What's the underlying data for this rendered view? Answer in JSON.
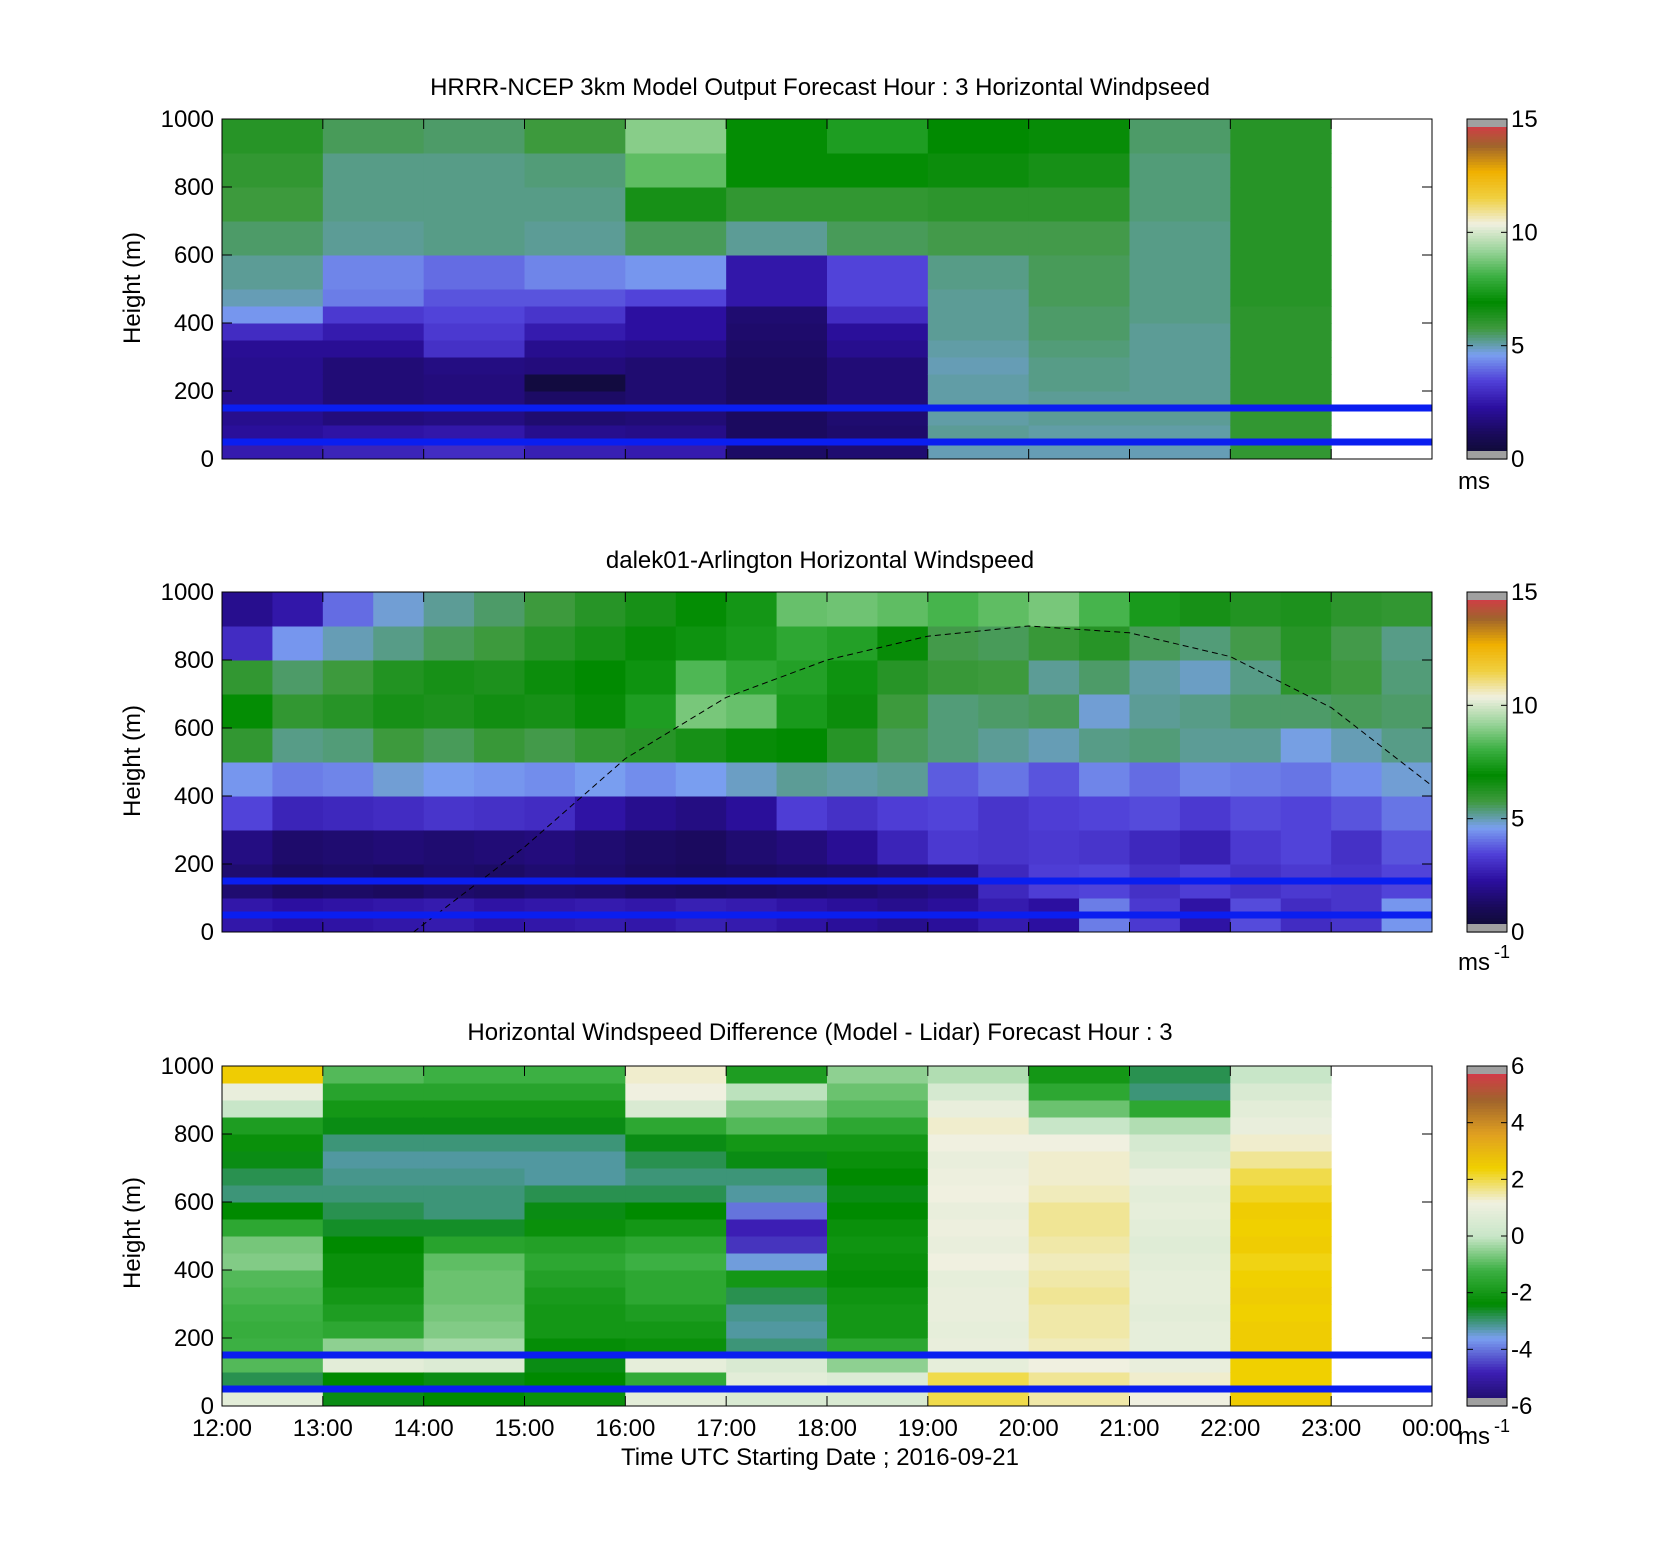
{
  "figure": {
    "time_axis_label": "Time UTC  Starting Date ; 2016-09-21",
    "time_ticks": [
      "12:00",
      "13:00",
      "14:00",
      "15:00",
      "16:00",
      "17:00",
      "18:00",
      "19:00",
      "20:00",
      "21:00",
      "22:00",
      "23:00",
      "00:00"
    ]
  },
  "colors": {
    "reference_lines": "#0a1ef0",
    "speed_scale": [
      "#0c0c2a",
      "#1a0a5c",
      "#2c0fa0",
      "#5040d8",
      "#7a9ff0",
      "#3f9a3f",
      "#008a00",
      "#3cb043",
      "#9bd49b",
      "#f0f0e0",
      "#f0d040",
      "#f0b000",
      "#a0642c",
      "#e03050"
    ],
    "diff_scale": [
      "#1a0a5c",
      "#3c1eb4",
      "#7a9ff0",
      "#008a00",
      "#3cb043",
      "#c8e6c8",
      "#f0f0e0",
      "#f0d000",
      "#e0a020",
      "#a0642c",
      "#e03050"
    ],
    "no_data": "#a0a0a0"
  },
  "chart_data": [
    {
      "type": "heatmap",
      "title": "HRRR-NCEP 3km Model Output   Forecast Hour : 3 Horizontal Windpseed",
      "ylabel": "Height (m)",
      "xlim": [
        "12:00",
        "00:00"
      ],
      "ylim": [
        0,
        1000
      ],
      "y_ticks": [
        "0",
        "200",
        "400",
        "600",
        "800",
        "1000"
      ],
      "colorbar": {
        "min": 0,
        "max": 15,
        "ticks": [
          "0",
          "5",
          "10",
          "15"
        ],
        "unit_label": "ms",
        "unit_sup": ""
      },
      "reference_lines_m": [
        50,
        150
      ],
      "time_bins": [
        "12:00",
        "13:00",
        "14:00",
        "15:00",
        "16:00",
        "17:00",
        "18:00",
        "19:00",
        "20:00",
        "21:00",
        "22:00"
      ],
      "height_bins_m": [
        0,
        50,
        100,
        150,
        200,
        250,
        300,
        350,
        400,
        450,
        500,
        600,
        700,
        800,
        900
      ],
      "values": [
        [
          2.6,
          2.2,
          2.0,
          2.0,
          2.0,
          2.0,
          2.1,
          3.0,
          4.5,
          5.0,
          5.2,
          5.5,
          5.8,
          6.0,
          6.2
        ],
        [
          2.8,
          2.4,
          1.7,
          1.6,
          1.6,
          1.6,
          2.1,
          2.6,
          3.3,
          4.2,
          4.3,
          5.2,
          5.3,
          5.3,
          5.6
        ],
        [
          3.0,
          2.5,
          1.8,
          1.7,
          1.7,
          1.8,
          3.1,
          3.3,
          3.5,
          3.7,
          4.0,
          5.3,
          5.3,
          5.3,
          5.5
        ],
        [
          2.7,
          2.0,
          1.5,
          1.3,
          0.5,
          1.7,
          2.0,
          2.6,
          3.2,
          3.7,
          4.3,
          5.2,
          5.3,
          5.4,
          5.8
        ],
        [
          2.6,
          1.9,
          1.6,
          1.5,
          1.5,
          1.5,
          1.9,
          2.3,
          2.3,
          3.5,
          4.5,
          5.6,
          6.5,
          8.5,
          9.0
        ],
        [
          1.3,
          1.2,
          1.2,
          1.2,
          1.2,
          1.2,
          1.3,
          1.4,
          1.5,
          2.5,
          2.5,
          5.2,
          6.0,
          7.0,
          7.0
        ],
        [
          1.5,
          1.4,
          1.5,
          1.6,
          1.6,
          1.6,
          2.0,
          2.2,
          3.0,
          3.5,
          3.5,
          5.6,
          6.0,
          7.0,
          7.5
        ],
        [
          5.0,
          5.2,
          5.1,
          5.1,
          5.1,
          5.0,
          5.1,
          5.2,
          5.2,
          5.2,
          5.3,
          5.7,
          6.1,
          6.7,
          6.9
        ],
        [
          5.0,
          5.1,
          5.2,
          5.2,
          5.3,
          5.3,
          5.4,
          5.5,
          5.5,
          5.6,
          5.6,
          5.7,
          6.1,
          6.5,
          6.8
        ],
        [
          5.0,
          5.1,
          5.2,
          5.2,
          5.2,
          5.2,
          5.2,
          5.2,
          5.3,
          5.3,
          5.3,
          5.3,
          5.4,
          5.4,
          5.5
        ],
        [
          6.0,
          6.0,
          6.0,
          6.1,
          6.1,
          6.1,
          6.1,
          6.1,
          6.1,
          6.2,
          6.2,
          6.2,
          6.2,
          6.2,
          6.2
        ]
      ]
    },
    {
      "type": "heatmap",
      "title": "dalek01-Arlington  Horizontal Windspeed",
      "ylabel": "Height (m)",
      "xlim": [
        "12:00",
        "00:00"
      ],
      "ylim": [
        0,
        1000
      ],
      "y_ticks": [
        "0",
        "200",
        "400",
        "600",
        "800",
        "1000"
      ],
      "colorbar": {
        "min": 0,
        "max": 15,
        "ticks": [
          "0",
          "5",
          "10",
          "15"
        ],
        "unit_label": "ms",
        "unit_sup": "-1"
      },
      "reference_lines_m": [
        50,
        150
      ],
      "overlay_curve": {
        "style": "dashed",
        "x_hours_utc": [
          13.9,
          15.0,
          16.0,
          17.0,
          18.0,
          19.0,
          20.0,
          21.0,
          22.0,
          23.0,
          24.0
        ],
        "y_m": [
          0,
          250,
          510,
          690,
          800,
          870,
          900,
          880,
          810,
          660,
          430
        ]
      },
      "time_bins": [
        "12:00",
        "12:30",
        "13:00",
        "13:30",
        "14:00",
        "14:30",
        "15:00",
        "15:30",
        "16:00",
        "16:30",
        "17:00",
        "17:30",
        "18:00",
        "18:30",
        "19:00",
        "19:30",
        "20:00",
        "20:30",
        "21:00",
        "21:30",
        "22:00",
        "22:30",
        "23:00",
        "23:30"
      ],
      "height_bins_m": [
        0,
        100,
        200,
        300,
        400,
        500,
        600,
        700,
        800,
        900
      ],
      "values": [
        [
          2.5,
          1.5,
          1.8,
          3.5,
          4.5,
          6.0,
          7.0,
          6.0,
          3.0,
          2.0
        ],
        [
          2.3,
          1.2,
          1.4,
          2.8,
          4.2,
          5.3,
          6.0,
          5.5,
          4.5,
          2.5
        ],
        [
          2.4,
          1.3,
          1.5,
          2.9,
          4.3,
          5.4,
          6.2,
          5.8,
          5.0,
          4.0
        ],
        [
          2.5,
          1.2,
          1.6,
          3.0,
          4.8,
          5.8,
          6.5,
          6.3,
          5.3,
          4.8
        ],
        [
          2.6,
          1.4,
          1.5,
          3.2,
          4.6,
          5.6,
          6.4,
          6.5,
          5.6,
          5.2
        ],
        [
          2.4,
          1.3,
          1.6,
          3.1,
          4.5,
          5.9,
          6.6,
          6.4,
          5.8,
          5.5
        ],
        [
          2.5,
          1.5,
          1.7,
          3.0,
          4.4,
          5.7,
          6.5,
          6.7,
          6.2,
          5.8
        ],
        [
          2.6,
          1.4,
          1.5,
          2.4,
          4.6,
          6.0,
          6.8,
          6.9,
          6.5,
          6.2
        ],
        [
          2.5,
          1.2,
          1.3,
          2.0,
          4.4,
          6.2,
          7.5,
          7.2,
          6.8,
          6.5
        ],
        [
          2.7,
          1.1,
          1.2,
          1.8,
          4.6,
          6.5,
          8.8,
          8.3,
          7.2,
          7.0
        ],
        [
          2.6,
          1.2,
          1.5,
          2.2,
          4.9,
          6.8,
          8.6,
          7.8,
          7.4,
          7.3
        ],
        [
          2.4,
          1.3,
          1.7,
          3.4,
          5.2,
          6.9,
          7.4,
          7.6,
          7.8,
          8.6
        ],
        [
          2.2,
          1.4,
          2.1,
          3.1,
          5.1,
          6.2,
          6.7,
          7.2,
          7.6,
          8.7
        ],
        [
          2.0,
          1.6,
          2.8,
          3.4,
          5.2,
          5.6,
          5.8,
          6.2,
          6.8,
          8.5
        ],
        [
          2.2,
          1.8,
          3.3,
          3.5,
          3.8,
          5.4,
          5.4,
          5.9,
          5.7,
          8.2
        ],
        [
          2.6,
          2.9,
          3.2,
          3.2,
          4.1,
          5.2,
          5.5,
          5.8,
          5.6,
          8.5
        ],
        [
          2.3,
          3.4,
          3.3,
          3.4,
          3.7,
          5.0,
          5.6,
          5.2,
          5.9,
          8.8
        ],
        [
          4.2,
          3.5,
          3.2,
          3.5,
          4.3,
          5.3,
          4.8,
          5.5,
          6.2,
          8.2
        ],
        [
          3.3,
          3.1,
          2.9,
          3.6,
          4.0,
          5.4,
          5.2,
          5.1,
          5.6,
          7.4
        ],
        [
          2.4,
          3.4,
          2.7,
          3.3,
          4.3,
          5.2,
          5.3,
          4.9,
          5.4,
          6.5
        ],
        [
          3.6,
          3.1,
          3.3,
          3.6,
          4.2,
          5.2,
          5.5,
          5.3,
          5.7,
          6.3
        ],
        [
          3.0,
          3.3,
          3.5,
          3.5,
          4.1,
          4.7,
          5.5,
          6.1,
          6.2,
          6.4
        ],
        [
          3.2,
          3.2,
          3.1,
          3.7,
          4.4,
          5.0,
          5.6,
          5.8,
          5.7,
          6.1
        ],
        [
          4.5,
          3.5,
          3.7,
          4.1,
          4.8,
          5.3,
          5.5,
          5.4,
          5.3,
          6.0
        ]
      ]
    },
    {
      "type": "heatmap",
      "title": "Horizontal Windspeed Difference (Model - Lidar) Forecast Hour : 3",
      "ylabel": "Height (m)",
      "xlabel": "Time UTC  Starting Date ; 2016-09-21",
      "xlim": [
        "12:00",
        "00:00"
      ],
      "ylim": [
        0,
        1000
      ],
      "y_ticks": [
        "0",
        "200",
        "400",
        "600",
        "800",
        "1000"
      ],
      "colorbar": {
        "min": -6,
        "max": 6,
        "ticks": [
          "-6",
          "-4",
          "-2",
          "0",
          "2",
          "4",
          "6"
        ],
        "unit_label": "ms",
        "unit_sup": "-1"
      },
      "reference_lines_m": [
        50,
        150
      ],
      "time_bins": [
        "12:00",
        "13:00",
        "14:00",
        "15:00",
        "16:00",
        "17:00",
        "18:00",
        "19:00",
        "20:00",
        "21:00",
        "22:00"
      ],
      "height_bins_m": [
        0,
        50,
        100,
        150,
        200,
        250,
        300,
        350,
        400,
        450,
        500,
        550,
        600,
        650,
        700,
        750,
        800,
        850,
        900,
        950
      ],
      "values": [
        [
          0.8,
          -2.8,
          -1.0,
          -1.2,
          -1.3,
          -1.2,
          -1.1,
          -1.0,
          -0.6,
          -0.7,
          -1.5,
          -2.4,
          -3.0,
          -2.8,
          -2.5,
          -2.2,
          -1.8,
          0.0,
          1.0,
          2.5
        ],
        [
          -2.5,
          -2.4,
          0.8,
          -0.5,
          -1.5,
          -1.8,
          -2.0,
          -2.2,
          -2.2,
          -2.4,
          -2.6,
          -2.8,
          -3.0,
          -3.1,
          -3.2,
          -3.0,
          -2.5,
          -2.0,
          -1.6,
          -1.0
        ],
        [
          -2.4,
          -2.5,
          0.6,
          -0.3,
          -0.6,
          -0.7,
          -0.8,
          -0.8,
          -0.9,
          -1.6,
          -2.6,
          -3.0,
          -3.0,
          -3.1,
          -3.2,
          -3.0,
          -2.5,
          -2.0,
          -1.6,
          -1.2
        ],
        [
          -2.2,
          -2.4,
          -2.5,
          -2.3,
          -2.0,
          -2.0,
          -1.9,
          -1.7,
          -1.5,
          -1.7,
          -2.2,
          -2.5,
          -2.8,
          -3.2,
          -3.2,
          -3.0,
          -2.5,
          -2.0,
          -1.6,
          -1.2
        ],
        [
          0.8,
          -1.4,
          0.9,
          -2.2,
          -2.0,
          -1.8,
          -1.5,
          -1.5,
          -1.2,
          -1.5,
          -2.0,
          -2.4,
          -2.8,
          -3.0,
          -2.8,
          -2.5,
          -1.5,
          0.5,
          1.2,
          1.3
        ],
        [
          0.5,
          0.8,
          0.5,
          -3.0,
          -3.2,
          -3.1,
          -2.8,
          -2.0,
          -3.5,
          -4.6,
          -4.8,
          -4.0,
          -3.2,
          -3.0,
          -2.5,
          -2.0,
          -1.0,
          -0.6,
          -0.1,
          -1.8
        ],
        [
          0.5,
          0.6,
          -0.5,
          -1.5,
          -2.0,
          -2.0,
          -2.1,
          -2.3,
          -2.2,
          -2.1,
          -2.2,
          -2.4,
          -2.5,
          -2.4,
          -2.2,
          -2.0,
          -1.5,
          -1.0,
          -0.8,
          -0.5
        ],
        [
          2.0,
          2.0,
          0.9,
          1.0,
          0.9,
          1.0,
          1.0,
          0.9,
          1.2,
          1.0,
          1.1,
          1.0,
          1.2,
          1.1,
          1.0,
          1.2,
          1.3,
          1.0,
          0.4,
          -0.2
        ],
        [
          1.5,
          1.6,
          1.2,
          1.4,
          1.5,
          1.5,
          1.6,
          1.5,
          1.4,
          1.5,
          1.6,
          1.6,
          1.4,
          1.3,
          1.3,
          1.2,
          0.0,
          -0.8,
          -1.5,
          -2.0
        ],
        [
          1.2,
          1.3,
          1.0,
          0.9,
          0.9,
          0.8,
          0.9,
          0.9,
          0.8,
          0.7,
          0.8,
          0.9,
          0.8,
          1.0,
          0.6,
          0.4,
          -0.2,
          -1.5,
          -3.0,
          -2.8
        ],
        [
          2.5,
          2.4,
          2.4,
          2.5,
          2.5,
          2.4,
          2.5,
          2.4,
          2.3,
          2.5,
          2.4,
          2.5,
          2.2,
          2.0,
          1.6,
          1.3,
          1.0,
          0.8,
          0.5,
          0.0
        ]
      ]
    }
  ]
}
